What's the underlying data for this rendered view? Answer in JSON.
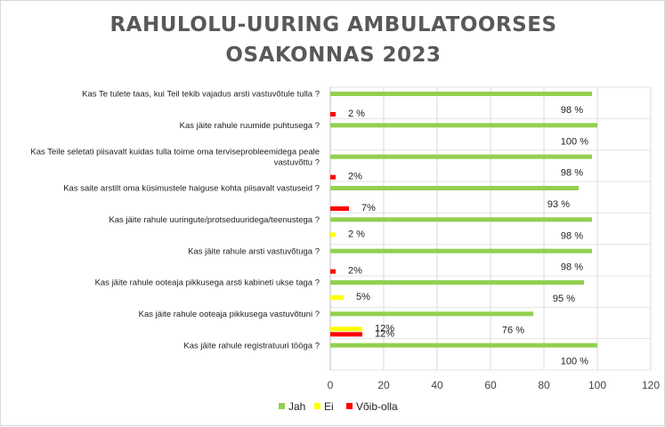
{
  "chart_data": {
    "type": "bar",
    "orientation": "horizontal",
    "title": [
      "RAHULOLU-UURING AMBULATOORSES",
      "OSAKONNAS 2023"
    ],
    "categories": [
      [
        "Kas Te tulete taas, kui Teil tekib vajadus arsti vastuvõtule tulla ?"
      ],
      [
        "Kas jäite rahule ruumide puhtusega ?"
      ],
      [
        "Kas Teile seletati piisavalt kuidas tulla toime oma terviseprobleemidega peale",
        "vastuvõttu ?"
      ],
      [
        "Kas saite arstilt oma küsimustele haiguse kohta piisavalt vastuseid ?"
      ],
      [
        "Kas jäite rahule uuringute/protseduuridega/teenustega ?"
      ],
      [
        "Kas jäite rahule arsti vastuvõtuga ?"
      ],
      [
        "Kas jäite rahule ooteaja pikkusega arsti kabineti ukse taga ?"
      ],
      [
        "Kas jäite rahule ooteaja pikkusega vastuvõtuni ?"
      ],
      [
        "Kas jäite rahule registratuuri tööga ?"
      ]
    ],
    "series": [
      {
        "name": "Jah",
        "color": "#92d050",
        "values": [
          98,
          100,
          98,
          93,
          98,
          98,
          95,
          76,
          100
        ],
        "labels": [
          "98 %",
          "100 %",
          "98 %",
          "93 %",
          "98 %",
          "98 %",
          "95 %",
          "76 %",
          "100 %"
        ]
      },
      {
        "name": "Ei",
        "color": "#ffff00",
        "values": [
          0,
          0,
          0,
          0,
          2,
          0,
          5,
          12,
          0
        ],
        "labels": [
          "",
          "",
          "",
          "",
          "2 %",
          "",
          "5%",
          "12%",
          ""
        ]
      },
      {
        "name": "Võib-olla",
        "color": "#ff0000",
        "values": [
          2,
          0,
          2,
          7,
          0,
          2,
          0,
          12,
          0
        ],
        "labels": [
          "2 %",
          "",
          "2%",
          "7%",
          "",
          "2%",
          "",
          "12%",
          ""
        ]
      }
    ],
    "xlim": [
      0,
      120
    ],
    "xticks": [
      "0",
      "20",
      "40",
      "60",
      "80",
      "100",
      "120"
    ],
    "grid": "vertical",
    "legend_position": "bottom"
  }
}
